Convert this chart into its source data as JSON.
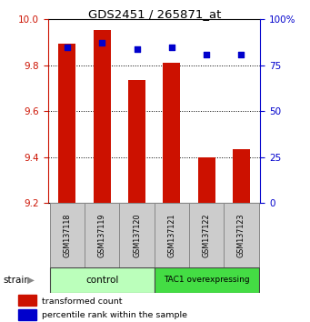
{
  "title": "GDS2451 / 265871_at",
  "samples": [
    "GSM137118",
    "GSM137119",
    "GSM137120",
    "GSM137121",
    "GSM137122",
    "GSM137123"
  ],
  "red_values": [
    9.895,
    9.953,
    9.735,
    9.812,
    9.398,
    9.435
  ],
  "blue_values": [
    85,
    87,
    84,
    85,
    81,
    81
  ],
  "ymin": 9.2,
  "ymax": 10.0,
  "yticks": [
    9.2,
    9.4,
    9.6,
    9.8,
    10.0
  ],
  "y2min": 0,
  "y2max": 100,
  "y2ticks": [
    0,
    25,
    50,
    75,
    100
  ],
  "bar_width": 0.5,
  "bar_color": "#cc1100",
  "dot_color": "#0000cc",
  "bar_bottom": 9.2,
  "groups": [
    {
      "label": "control",
      "start": 0,
      "end": 3,
      "color": "#bbffbb"
    },
    {
      "label": "TAC1 overexpressing",
      "start": 3,
      "end": 6,
      "color": "#44dd44"
    }
  ],
  "strain_label": "strain",
  "legend_items": [
    {
      "color": "#cc1100",
      "label": "transformed count"
    },
    {
      "color": "#0000cc",
      "label": "percentile rank within the sample"
    }
  ],
  "background_color": "#ffffff",
  "plot_bg": "#ffffff",
  "tick_label_color_left": "#cc1100",
  "tick_label_color_right": "#0000cc",
  "sample_box_color": "#cccccc",
  "sample_box_edge": "#888888"
}
